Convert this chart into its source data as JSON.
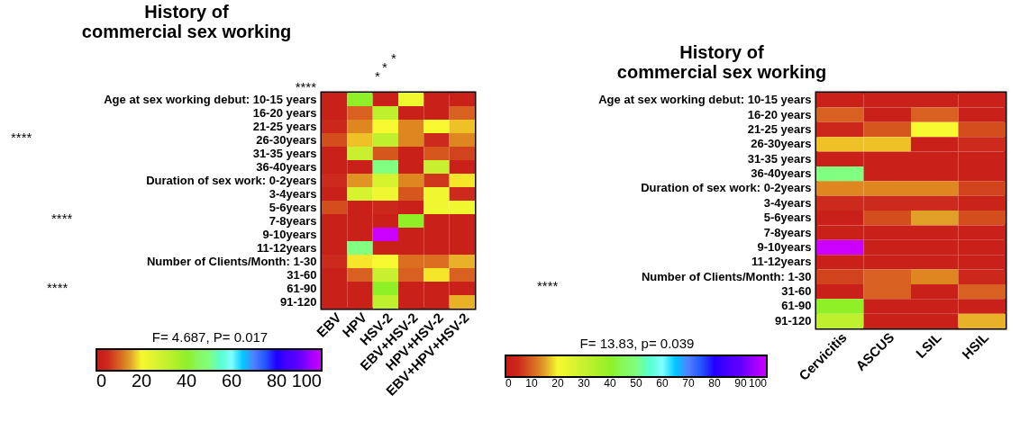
{
  "chart_data": [
    {
      "type": "heatmap",
      "title": "History of commercial sex working",
      "categories": [
        "EBV",
        "HPV",
        "HSV-2",
        "EBV+HSV-2",
        "HPV+HSV-2",
        "EBV+HPV+HSV-2"
      ],
      "y_categories": [
        "Age at sex working debut:  10-15 years",
        "16-20 years",
        "21-25 years",
        "26-30years",
        "31-35 years",
        "36-40years",
        "Duration of sex work:   0-2years",
        "3-4years",
        "5-6years",
        "7-8years",
        "9-10years",
        "11-12years",
        "Number of Clients/Month:    1-30",
        "31-60",
        "61-90",
        "91-120"
      ],
      "cells": [
        [
          2,
          40,
          2,
          22,
          2,
          2
        ],
        [
          2,
          10,
          32,
          2,
          2,
          10
        ],
        [
          4,
          13,
          20,
          13,
          20,
          17
        ],
        [
          8,
          17,
          32,
          13,
          5,
          13
        ],
        [
          2,
          30,
          9,
          2,
          9,
          7
        ],
        [
          2,
          2,
          50,
          2,
          30,
          2
        ],
        [
          5,
          14,
          27,
          13,
          6,
          19
        ],
        [
          2,
          27,
          22,
          9,
          22,
          5
        ],
        [
          8,
          2,
          4,
          2,
          22,
          22
        ],
        [
          2,
          2,
          2,
          40,
          2,
          2
        ],
        [
          2,
          2,
          100,
          2,
          2,
          2
        ],
        [
          2,
          50,
          2,
          2,
          2,
          2
        ],
        [
          5,
          19,
          20,
          11,
          11,
          16
        ],
        [
          2,
          10,
          30,
          10,
          19,
          10
        ],
        [
          2,
          2,
          40,
          2,
          2,
          2
        ],
        [
          2,
          2,
          32,
          2,
          2,
          16
        ]
      ],
      "clim": [
        0,
        100
      ],
      "cticks": [
        0,
        20,
        40,
        60,
        80,
        100
      ],
      "annotations": [
        "****",
        "****",
        "****",
        "****",
        "*",
        "*",
        "*",
        "F= 4.687, P= 0.017"
      ]
    },
    {
      "type": "heatmap",
      "title": "History of commercial sex working",
      "categories": [
        "Cervicitis",
        "ASCUS",
        "LSIL",
        "HSIL"
      ],
      "y_categories": [
        "Age at sex working debut: 10-15 years",
        "16-20 years",
        "21-25 years",
        "26-30years",
        "31-35 years",
        "36-40years",
        "Duration of sex work: 0-2years",
        "3-4years",
        "5-6years",
        "7-8years",
        "9-10years",
        "11-12years",
        "Number of Clients/Month: 1-30",
        "31-60",
        "61-90",
        "91-120"
      ],
      "cells": [
        [
          2,
          2,
          2,
          2
        ],
        [
          10,
          2,
          10,
          2
        ],
        [
          4,
          9,
          20,
          8
        ],
        [
          17,
          17,
          2,
          5
        ],
        [
          2,
          2,
          2,
          2
        ],
        [
          50,
          2,
          2,
          2
        ],
        [
          13,
          13,
          13,
          7
        ],
        [
          5,
          5,
          5,
          3
        ],
        [
          2,
          8,
          15,
          8
        ],
        [
          2,
          2,
          2,
          2
        ],
        [
          100,
          2,
          2,
          2
        ],
        [
          2,
          2,
          2,
          2
        ],
        [
          7,
          10,
          13,
          4
        ],
        [
          2,
          10,
          2,
          10
        ],
        [
          40,
          2,
          2,
          2
        ],
        [
          32,
          2,
          2,
          16
        ]
      ],
      "clim": [
        0,
        100
      ],
      "cticks": [
        0,
        10,
        20,
        30,
        40,
        50,
        60,
        70,
        80,
        90,
        100
      ],
      "annotations": [
        "****",
        "F= 13.83, p= 0.039"
      ]
    }
  ]
}
